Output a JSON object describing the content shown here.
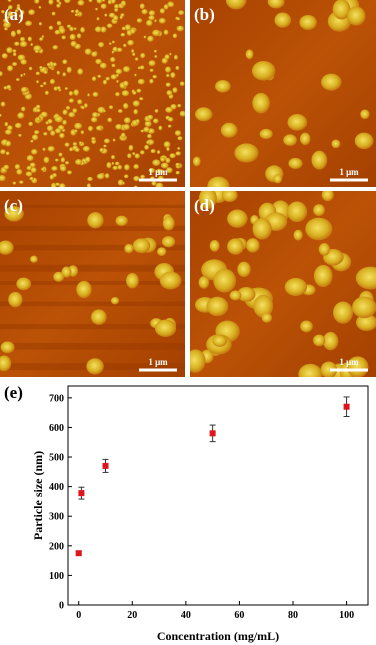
{
  "panels": [
    {
      "label": "(a)",
      "scale_bar": "1 μm"
    },
    {
      "label": "(b)",
      "scale_bar": "1 μm"
    },
    {
      "label": "(c)",
      "scale_bar": "1 μm"
    },
    {
      "label": "(d)",
      "scale_bar": "1 μm"
    }
  ],
  "chart_data": {
    "type": "scatter",
    "panel_label": "(e)",
    "x_label": "Concentration (mg/mL)",
    "y_label": "Particle size (nm)",
    "x": [
      0,
      1,
      10,
      50,
      100
    ],
    "values": [
      175,
      378,
      470,
      580,
      670
    ],
    "errors": [
      6,
      20,
      22,
      28,
      33
    ],
    "color": "#e0141b",
    "xlim": [
      -4,
      108
    ],
    "ylim": [
      0,
      740
    ],
    "xticks": [
      0,
      20,
      40,
      60,
      80,
      100
    ],
    "yticks": [
      0,
      100,
      200,
      300,
      400,
      500,
      600,
      700
    ]
  }
}
